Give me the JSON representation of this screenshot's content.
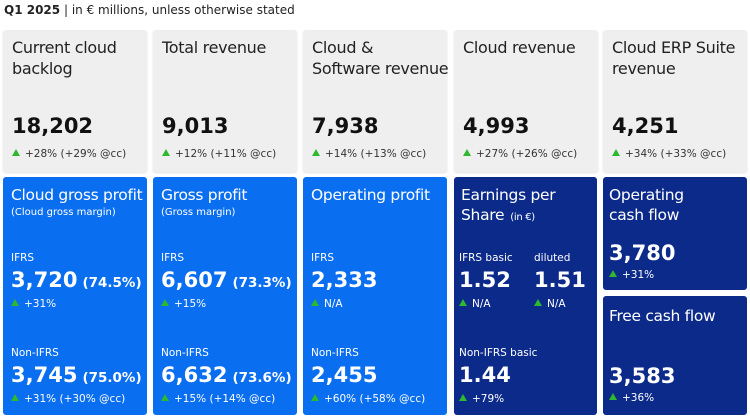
{
  "header": {
    "title": "Q1 2025",
    "subtitle": "| in € millions, unless otherwise stated"
  },
  "top_cards": [
    {
      "label_lines": [
        "Current cloud",
        "backlog"
      ],
      "value": "18,202",
      "change": "+28% (+29% @cc)"
    },
    {
      "label_lines": [
        "Total revenue"
      ],
      "value": "9,013",
      "change": "+12% (+11% @cc)"
    },
    {
      "label_lines": [
        "Cloud &",
        "Software revenue"
      ],
      "value": "7,938",
      "change": "+14% (+13% @cc)"
    },
    {
      "label_lines": [
        "Cloud revenue"
      ],
      "value": "4,993",
      "change": "+27% (+26% @cc)"
    },
    {
      "label_lines": [
        "Cloud ERP Suite",
        "revenue"
      ],
      "value": "4,251",
      "change": "+34% (+33% @cc)"
    }
  ],
  "bottom_cards": [
    {
      "title": "Cloud gross profit",
      "subtitle": "(Cloud gross margin)",
      "sections": [
        {
          "label": "IFRS",
          "value": "3,720",
          "margin": "(74.5%)",
          "change": "+31%"
        },
        {
          "label": "Non-IFRS",
          "value": "3,745",
          "margin": "(75.0%)",
          "change": "+31% (+30% @cc)"
        }
      ]
    },
    {
      "title": "Gross profit",
      "subtitle": "(Gross margin)",
      "sections": [
        {
          "label": "IFRS",
          "value": "6,607",
          "margin": "(73.3%)",
          "change": "+15%"
        },
        {
          "label": "Non-IFRS",
          "value": "6,632",
          "margin": "(73.6%)",
          "change": "+15% (+14% @cc)"
        }
      ]
    },
    {
      "title": "Operating profit",
      "sections": [
        {
          "label": "IFRS",
          "value": "2,333",
          "change": "N/A"
        },
        {
          "label": "Non-IFRS",
          "value": "2,455",
          "change": "+60% (+58% @cc)"
        }
      ]
    }
  ],
  "eps_card": {
    "title_lines": [
      "Earnings per",
      "Share"
    ],
    "unit": "(in €)",
    "ifrs_basic": {
      "label": "IFRS basic",
      "value": "1.52",
      "change": "N/A"
    },
    "ifrs_diluted": {
      "label": "diluted",
      "value": "1.51",
      "change": "N/A"
    },
    "non_ifrs_basic": {
      "label": "Non-IFRS basic",
      "value": "1.44",
      "change": "+79%"
    }
  },
  "cash_cards": [
    {
      "title_lines": [
        "Operating",
        "cash flow"
      ],
      "value": "3,780",
      "change": "+31%"
    },
    {
      "title_lines": [
        "Free cash flow"
      ],
      "value": "3,583",
      "change": "+36%"
    }
  ]
}
